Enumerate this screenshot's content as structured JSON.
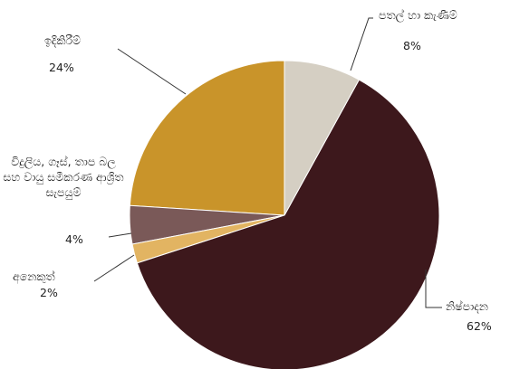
{
  "chart_data": {
    "type": "pie",
    "categories": [
      "පතල් හා කැණීම්",
      "නිෂ්පාදන",
      "අනෙකුත්",
      "විදුලිය, ගෑස්, තාප බල සහ වායු සමීකරණ ආශ්‍රිත සැපයුම්",
      "ඉදිකිරීම්"
    ],
    "values": [
      8,
      62,
      2,
      4,
      24
    ],
    "value_labels": [
      "8%",
      "62%",
      "2%",
      "4%",
      "24%"
    ],
    "colors": [
      "#d5cfc3",
      "#3d181c",
      "#e2b462",
      "#7a5958",
      "#c9942a"
    ]
  }
}
